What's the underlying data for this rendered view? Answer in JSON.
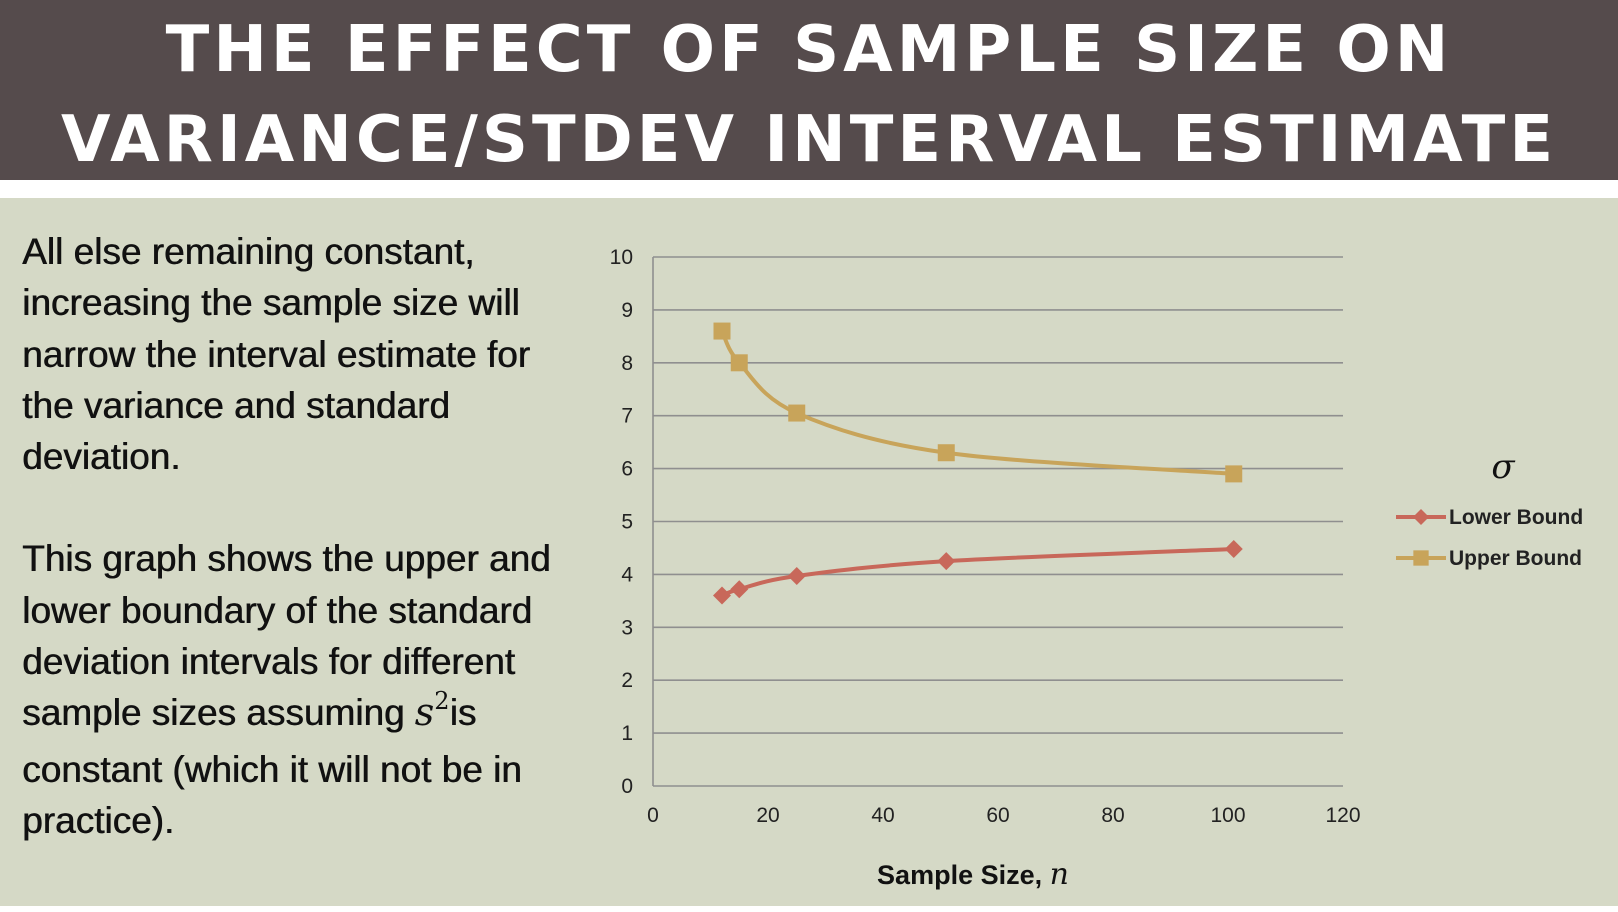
{
  "title": {
    "line1": "THE EFFECT OF SAMPLE SIZE ON",
    "line2": "VARIANCE/STDEV INTERVAL ESTIMATE"
  },
  "body": {
    "para1": "All else remaining constant, increasing the sample size will narrow the interval estimate for the variance and standard deviation.",
    "para2_before": "This graph shows the upper and lower boundary of the standard deviation intervals for different sample sizes assuming ",
    "para2_math_var": "s",
    "para2_math_sup": "2",
    "para2_after": "is constant (which it will not be in practice)."
  },
  "chart_data": {
    "type": "scatter",
    "title": "",
    "xlabel": "Sample Size,",
    "xlabel_var": "n",
    "legend_title": "σ",
    "legend_position": "right",
    "xlim": [
      0,
      120
    ],
    "ylim": [
      0,
      10
    ],
    "x_ticks": [
      "0",
      "20",
      "40",
      "60",
      "80",
      "100",
      "120"
    ],
    "y_ticks": [
      "0",
      "1",
      "2",
      "3",
      "4",
      "5",
      "6",
      "7",
      "8",
      "9",
      "10"
    ],
    "grid": true,
    "smooth_lines": true,
    "series": [
      {
        "name": "Lower Bound",
        "marker": "diamond",
        "color": "#c8685a",
        "x": [
          12,
          15,
          25,
          51,
          101
        ],
        "y": [
          3.6,
          3.72,
          3.97,
          4.25,
          4.48
        ]
      },
      {
        "name": "Upper Bound",
        "marker": "square",
        "color": "#c8a45a",
        "x": [
          12,
          15,
          25,
          51,
          101
        ],
        "y": [
          8.6,
          8.0,
          7.05,
          6.3,
          5.9
        ]
      }
    ]
  }
}
